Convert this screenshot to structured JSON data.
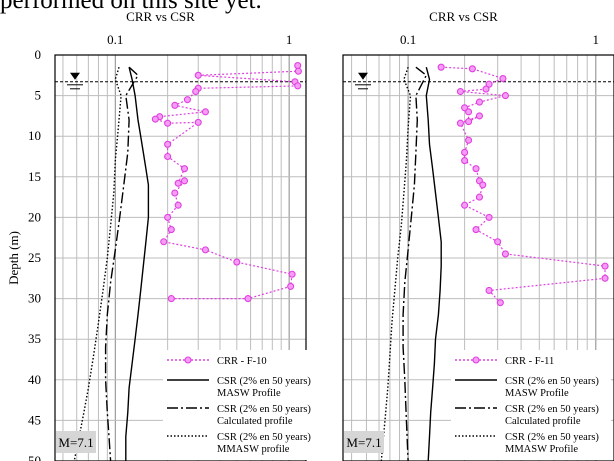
{
  "page": {
    "caption_fragment": "performed on this site yet."
  },
  "chart_data": [
    {
      "type": "line",
      "title": "CRR vs CSR",
      "ylabel": "Depth (m)",
      "xscale": "log",
      "xlim": [
        0.045,
        1.25
      ],
      "ylim": [
        0,
        50
      ],
      "y_inverted": true,
      "xticks": [
        0.1,
        1
      ],
      "xtick_labels": [
        "0.1",
        "1"
      ],
      "yticks": [
        0,
        5,
        10,
        15,
        20,
        25,
        30,
        35,
        40,
        45,
        50
      ],
      "ytick_labels": [
        "0",
        "5",
        "10",
        "15",
        "20",
        "25",
        "30",
        "35",
        "40",
        "45",
        "50"
      ],
      "grid": true,
      "water_table_depth": 3.3,
      "legend_position": "bottom-right",
      "annotation": "M=7.1",
      "series": [
        {
          "name": "CRR - F-10",
          "style": "markers-dotted",
          "color": "#e040e0",
          "x": [
            1.12,
            1.13,
            0.3,
            1.08,
            1.12,
            0.3,
            0.29,
            0.26,
            0.22,
            0.33,
            0.18,
            0.17,
            0.2,
            0.3,
            0.2,
            0.2,
            0.25,
            0.23,
            0.25,
            0.22,
            0.23,
            0.2,
            0.21,
            0.19,
            0.33,
            0.5,
            1.04,
            1.02,
            0.58,
            0.21
          ],
          "y": [
            1.3,
            2.0,
            2.5,
            3.3,
            3.8,
            4.1,
            4.5,
            5.5,
            6.2,
            7.0,
            7.6,
            7.9,
            8.4,
            8.3,
            11.0,
            12.5,
            14.0,
            15.8,
            15.5,
            17.0,
            18.5,
            20.0,
            21.5,
            23.0,
            24.0,
            25.5,
            27.0,
            28.5,
            30.0,
            30.0
          ],
          "order_note": ""
        },
        {
          "name": "CSR (2% en 50 years) MASW Profile",
          "style": "solid",
          "color": "#000000",
          "x": [
            0.12,
            0.125,
            0.13,
            0.135,
            0.14,
            0.145,
            0.15,
            0.155,
            0.155,
            0.15,
            0.145,
            0.14,
            0.135,
            0.13,
            0.125,
            0.12,
            0.118,
            0.115,
            0.115
          ],
          "y": [
            1.5,
            3.0,
            5.0,
            8.0,
            10.0,
            12.0,
            14.0,
            16.0,
            20.0,
            23.0,
            26.0,
            29.0,
            32.0,
            35.0,
            38.0,
            41.0,
            44.0,
            47.0,
            50.0
          ]
        },
        {
          "name": "CSR (2% en 50 years) Calculated profile",
          "style": "dashdot",
          "color": "#000000",
          "x": [
            0.12,
            0.135,
            0.115,
            0.12,
            0.118,
            0.112,
            0.106,
            0.1,
            0.094,
            0.09,
            0.088,
            0.088,
            0.09,
            0.092,
            0.094
          ],
          "y": [
            1.5,
            2.5,
            5.0,
            8.0,
            12.0,
            16.0,
            20.0,
            24.0,
            28.0,
            32.0,
            36.0,
            40.0,
            44.0,
            47.0,
            50.0
          ]
        },
        {
          "name": "CSR (2% en 50 years) MMASW profile",
          "style": "dotted",
          "color": "#000000",
          "x": [
            0.105,
            0.1,
            0.108,
            0.104,
            0.1,
            0.098,
            0.094,
            0.09,
            0.085,
            0.08,
            0.075,
            0.07,
            0.066,
            0.062,
            0.058
          ],
          "y": [
            1.5,
            3.0,
            5.0,
            9.0,
            13.0,
            17.0,
            21.0,
            25.0,
            29.0,
            33.0,
            37.0,
            41.0,
            44.0,
            47.0,
            50.0
          ]
        }
      ]
    },
    {
      "type": "line",
      "title": "CRR vs CSR",
      "ylabel": "",
      "xscale": "log",
      "xlim": [
        0.045,
        1.25
      ],
      "ylim": [
        0,
        50
      ],
      "y_inverted": true,
      "xticks": [
        0.1,
        1
      ],
      "xtick_labels": [
        "0.1",
        "1"
      ],
      "yticks": [
        0,
        5,
        10,
        15,
        20,
        25,
        30,
        35,
        40,
        45,
        50
      ],
      "ytick_labels": [],
      "grid": true,
      "water_table_depth": 3.3,
      "legend_position": "bottom-right",
      "annotation": "M=7.1",
      "series": [
        {
          "name": "CRR - F-11",
          "style": "markers-dotted",
          "color": "#e040e0",
          "x": [
            0.15,
            0.22,
            0.32,
            0.27,
            0.26,
            0.19,
            0.33,
            0.24,
            0.2,
            0.21,
            0.21,
            0.24,
            0.19,
            0.21,
            0.2,
            0.2,
            0.23,
            0.24,
            0.25,
            0.24,
            0.2,
            0.27,
            0.23,
            0.3,
            0.33,
            1.12,
            1.12,
            0.27,
            0.31
          ],
          "y": [
            1.5,
            1.7,
            2.9,
            3.6,
            4.2,
            4.5,
            5.0,
            5.8,
            6.5,
            7.0,
            8.2,
            7.5,
            8.4,
            10.5,
            12.0,
            13.0,
            14.0,
            15.5,
            16.0,
            17.5,
            18.5,
            20.0,
            21.5,
            23.0,
            24.5,
            26.0,
            27.5,
            29.0,
            30.5
          ],
          "order_note": ""
        },
        {
          "name": "CSR (2% en 50 years) MASW Profile",
          "style": "solid",
          "color": "#000000",
          "x": [
            0.125,
            0.13,
            0.125,
            0.128,
            0.13,
            0.135,
            0.14,
            0.145,
            0.15,
            0.15,
            0.148,
            0.145,
            0.14,
            0.138,
            0.135,
            0.132,
            0.13,
            0.128
          ],
          "y": [
            1.5,
            3.0,
            5.0,
            8.0,
            11.0,
            14.0,
            17.0,
            20.0,
            23.0,
            26.0,
            29.0,
            32.0,
            35.0,
            38.0,
            41.0,
            44.0,
            47.0,
            50.0
          ]
        },
        {
          "name": "CSR (2% en 50 years) Calculated profile",
          "style": "dashdot",
          "color": "#000000",
          "x": [
            0.11,
            0.125,
            0.11,
            0.112,
            0.11,
            0.108,
            0.104,
            0.1,
            0.096,
            0.094,
            0.094,
            0.096,
            0.098,
            0.1
          ],
          "y": [
            1.5,
            2.5,
            5.0,
            8.0,
            12.0,
            16.0,
            20.0,
            24.0,
            28.0,
            32.0,
            36.0,
            40.0,
            45.0,
            50.0
          ]
        },
        {
          "name": "CSR (2% en 50 years) MMASW Profile",
          "style": "dotted",
          "color": "#000000",
          "x": [
            0.1,
            0.095,
            0.103,
            0.1,
            0.098,
            0.095,
            0.092,
            0.088,
            0.085,
            0.082,
            0.08,
            0.078,
            0.076,
            0.074,
            0.072
          ],
          "y": [
            1.5,
            3.0,
            5.0,
            9.0,
            13.0,
            17.0,
            21.0,
            25.0,
            29.0,
            33.0,
            37.0,
            41.0,
            44.0,
            47.0,
            50.0
          ]
        }
      ]
    }
  ]
}
